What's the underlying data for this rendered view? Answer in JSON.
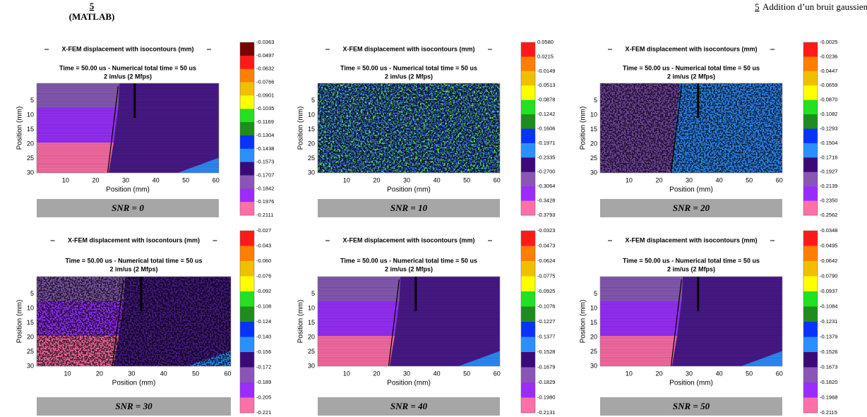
{
  "header": {
    "number": "5",
    "subtitle": "(MATLAB)",
    "right_number": "5",
    "right_title": "Addition d’un bruit gaussien"
  },
  "axes": {
    "legend": "X-FEM displacement with isocontours (mm)",
    "time": "Time = 50.00 us - Numerical total time = 50 us",
    "rate": "2 im/us (2 Mfps)",
    "xlabel": "Position (mm)",
    "ylabel": "Position (mm)",
    "xticks": [
      "10",
      "20",
      "30",
      "40",
      "50",
      "60"
    ],
    "yticks": [
      "5",
      "10",
      "15",
      "20",
      "25",
      "30"
    ]
  },
  "panels": [
    {
      "caption": "SNR = 0",
      "colorbar": [
        "-0.0363",
        "-0.0497",
        "-0.0632",
        "-0.0766",
        "-0.0901",
        "-0.1035",
        "-0.1169",
        "-0.1304",
        "-0.1438",
        "-0.1573",
        "-0.1707",
        "-0.1842",
        "-0.1976",
        "-0.2111"
      ]
    },
    {
      "caption": "SNR = 10",
      "colorbar": [
        "0.0580",
        "0.0215",
        "-0.0149",
        "-0.0513",
        "-0.0878",
        "-0.1242",
        "-0.1606",
        "-0.1971",
        "-0.2335",
        "-0.2700",
        "-0.3064",
        "-0.3428",
        "-0.3793"
      ]
    },
    {
      "caption": "SNR = 20",
      "colorbar": [
        "-0.0025",
        "-0.0236",
        "-0.0447",
        "-0.0659",
        "-0.0870",
        "-0.1082",
        "-0.1293",
        "-0.1504",
        "-0.1716",
        "-0.1927",
        "-0.2139",
        "-0.2350",
        "-0.2562"
      ]
    },
    {
      "caption": "SNR = 30",
      "colorbar": [
        "-0.027",
        "-0.043",
        "-0.060",
        "-0.076",
        "-0.092",
        "-0.108",
        "-0.124",
        "-0.140",
        "-0.156",
        "-0.172",
        "-0.189",
        "-0.205",
        "-0.221"
      ]
    },
    {
      "caption": "SNR = 40",
      "colorbar": [
        "-0.0323",
        "-0.0473",
        "-0.0624",
        "-0.0775",
        "-0.0925",
        "-0.1076",
        "-0.1227",
        "-0.1377",
        "-0.1528",
        "-0.1679",
        "-0.1829",
        "-0.1980",
        "-0.2131"
      ]
    },
    {
      "caption": "SNR = 50",
      "colorbar": [
        "-0.0348",
        "-0.0495",
        "-0.0642",
        "-0.0790",
        "-0.0937",
        "-0.1084",
        "-0.1231",
        "-0.1379",
        "-0.1526",
        "-0.1673",
        "-0.1820",
        "-0.1968",
        "-0.2115"
      ]
    }
  ]
}
